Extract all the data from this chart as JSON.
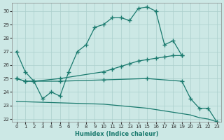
{
  "bg_color": "#cce8e5",
  "line_color": "#1a7a6e",
  "grid_color": "#aacfcc",
  "xlabel": "Humidex (Indice chaleur)",
  "xlim": [
    -0.5,
    23.5
  ],
  "ylim": [
    21.8,
    30.6
  ],
  "yticks": [
    22,
    23,
    24,
    25,
    26,
    27,
    28,
    29,
    30
  ],
  "xticks": [
    0,
    1,
    2,
    3,
    4,
    5,
    6,
    7,
    8,
    9,
    10,
    11,
    12,
    13,
    14,
    15,
    16,
    17,
    18,
    19,
    20,
    21,
    22,
    23
  ],
  "l1x": [
    0,
    1,
    2,
    3,
    4,
    5,
    6,
    7,
    8,
    9,
    10,
    11,
    12,
    13,
    14,
    15,
    16,
    17,
    18,
    19
  ],
  "l1y": [
    27.0,
    25.5,
    24.8,
    23.5,
    24.0,
    23.7,
    25.5,
    27.0,
    27.5,
    28.8,
    29.0,
    29.5,
    29.5,
    29.3,
    30.2,
    30.3,
    30.0,
    27.5,
    27.8,
    26.7
  ],
  "l2x": [
    0,
    1,
    2,
    5,
    10,
    11,
    12,
    13,
    14,
    15,
    16,
    17,
    18,
    19
  ],
  "l2y": [
    25.0,
    24.8,
    24.8,
    25.0,
    25.5,
    25.7,
    25.9,
    26.1,
    26.3,
    26.4,
    26.5,
    26.6,
    26.7,
    26.7
  ],
  "l3x": [
    0,
    1,
    2,
    5,
    10,
    15,
    19,
    20,
    21,
    22,
    23
  ],
  "l3y": [
    25.0,
    24.8,
    24.8,
    24.8,
    24.9,
    25.0,
    24.8,
    23.5,
    22.8,
    22.8,
    21.8
  ],
  "l4x": [
    0,
    5,
    10,
    15,
    19,
    20,
    21,
    22,
    23
  ],
  "l4y": [
    23.3,
    23.2,
    23.1,
    22.8,
    22.4,
    22.3,
    22.1,
    22.0,
    21.8
  ]
}
